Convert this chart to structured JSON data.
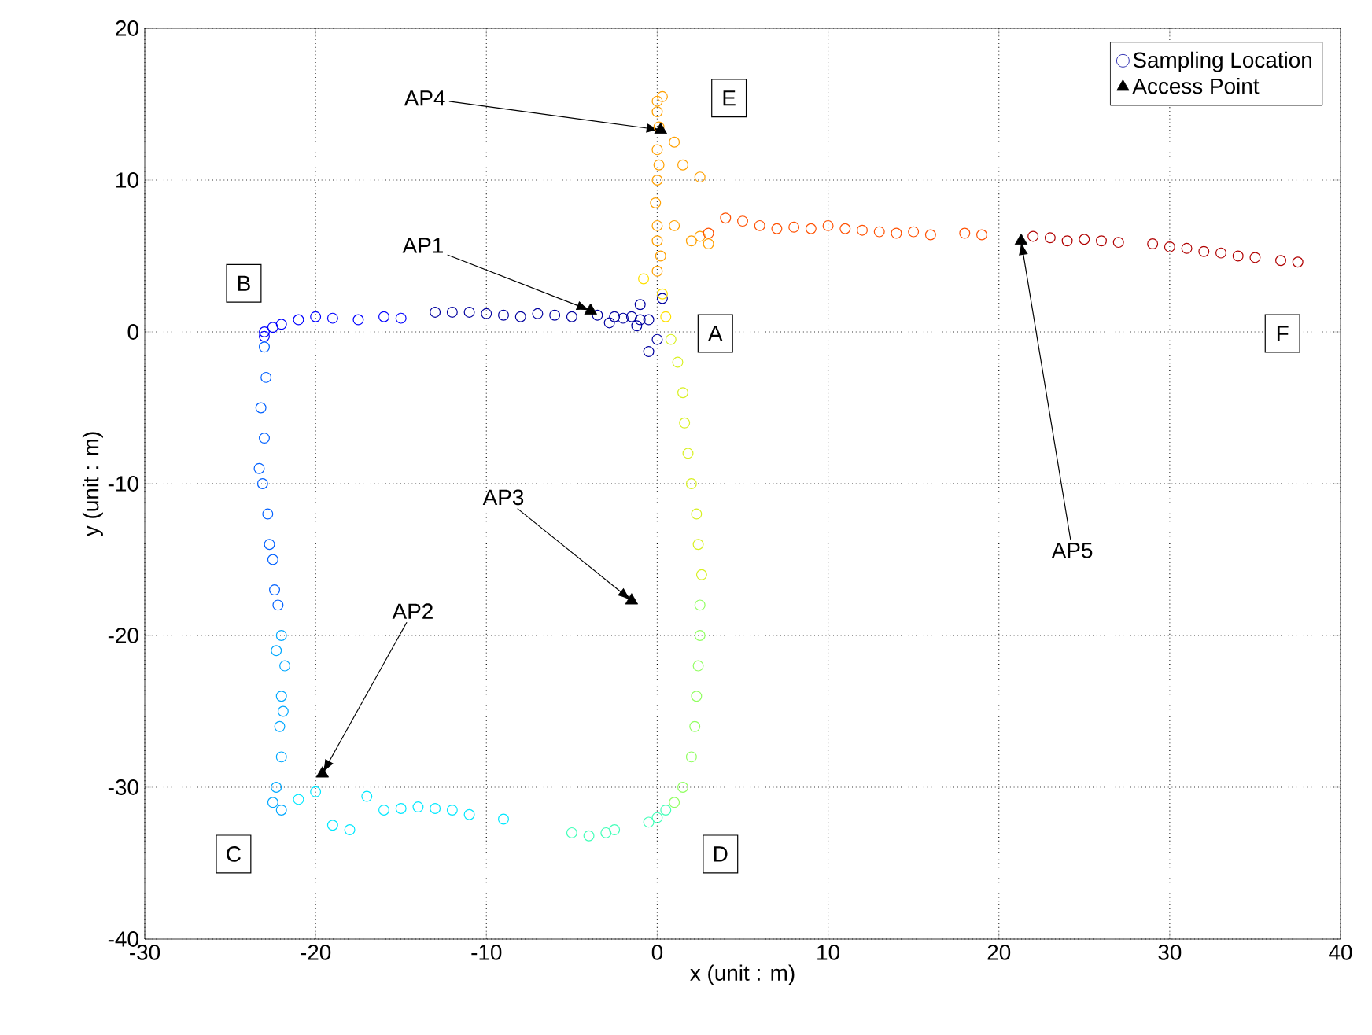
{
  "chart_data": {
    "type": "scatter",
    "xlabel": "x (unit : m)",
    "ylabel": "y (unit : m)",
    "xlim": [
      -30,
      40
    ],
    "ylim": [
      -40,
      20
    ],
    "xticks": [
      -30,
      -20,
      -10,
      0,
      10,
      20,
      30,
      40
    ],
    "yticks": [
      -40,
      -30,
      -20,
      -10,
      0,
      10,
      20
    ],
    "grid": true,
    "legend": "top right",
    "series": [
      {
        "name": "Sampling Location",
        "color": "#00009f",
        "marker": "circle",
        "x": [
          -0.5,
          -1,
          -1.5,
          -2,
          -2.5,
          -3.5,
          -5,
          -6,
          -7,
          -8,
          -9,
          -10,
          -11,
          -12,
          -13,
          0,
          -0.5,
          0.3,
          -1,
          -2.8,
          -1.2,
          -15,
          -16,
          -17.5,
          -19,
          -20,
          -21,
          -22,
          -22.5,
          -23,
          -23,
          -23,
          -22.9,
          -23.2,
          -23,
          -23.3,
          -23.1,
          -22.8,
          -22.7,
          -22.5,
          -22.4,
          -22.2,
          -22,
          -22.3,
          -21.8,
          -22,
          -21.9,
          -22.1,
          -22,
          -22.3,
          -22.5,
          -22,
          -21,
          -20,
          -19,
          -18,
          -17,
          -16,
          -15,
          -14,
          -13,
          -12,
          -11,
          -9,
          -5,
          -4,
          -3,
          -2.5,
          -0.5,
          0,
          0.5,
          1,
          1.5,
          2,
          2.2,
          2.3,
          2.4,
          2.5,
          2.5,
          2.6,
          2.4,
          2.3,
          2,
          1.8,
          1.6,
          1.5,
          1.2,
          0.8,
          0.5,
          0.3,
          -0.8,
          0,
          0.2,
          0,
          0,
          -0.1,
          0,
          0.1,
          0,
          0.1,
          0,
          0,
          0.3,
          1,
          1.5,
          2.5,
          1,
          2,
          3,
          2.5,
          3,
          4,
          5,
          6,
          7,
          8,
          9,
          10,
          11,
          12,
          13,
          14,
          15,
          16,
          18,
          19,
          22,
          23,
          24,
          25,
          26,
          27,
          29,
          30,
          31,
          32,
          33,
          34,
          35,
          36.5,
          37.5
        ],
        "values": [
          0.8,
          0.8,
          1.0,
          0.9,
          1.0,
          1.1,
          1.0,
          1.1,
          1.2,
          1.0,
          1.1,
          1.2,
          1.3,
          1.3,
          1.3,
          -0.5,
          -1.3,
          2.2,
          1.8,
          0.6,
          0.4,
          0.9,
          1.0,
          0.8,
          0.9,
          1.0,
          0.8,
          0.5,
          0.3,
          0,
          -0.3,
          -1,
          -3,
          -5,
          -7,
          -9,
          -10,
          -12,
          -14,
          -15,
          -17,
          -18,
          -20,
          -21,
          -22,
          -24,
          -25,
          -26,
          -28,
          -30,
          -31,
          -31.5,
          -30.8,
          -30.3,
          -32.5,
          -32.8,
          -30.6,
          -31.5,
          -31.4,
          -31.3,
          -31.4,
          -31.5,
          -31.8,
          -32.1,
          -33,
          -33.2,
          -33,
          -32.8,
          -32.3,
          -32,
          -31.5,
          -31,
          -30,
          -28,
          -26,
          -24,
          -22,
          -20,
          -18,
          -16,
          -14,
          -12,
          -10,
          -8,
          -6,
          -4,
          -2,
          -0.5,
          1,
          2.5,
          3.5,
          4,
          5,
          6,
          7,
          8.5,
          10,
          11,
          12,
          13.5,
          14.5,
          15.2,
          15.5,
          12.5,
          11,
          10.2,
          7,
          6,
          5.8,
          6.3,
          6.5,
          7.5,
          7.3,
          7,
          6.8,
          6.9,
          6.8,
          7,
          6.8,
          6.7,
          6.6,
          6.5,
          6.6,
          6.4,
          6.5,
          6.4,
          6.3,
          6.2,
          6.0,
          6.1,
          6.0,
          5.9,
          5.8,
          5.6,
          5.5,
          5.3,
          5.2,
          5.0,
          4.9,
          4.7,
          4.6
        ],
        "colors": [
          "#00009f",
          "#00009f",
          "#00009f",
          "#00009f",
          "#00009f",
          "#00009f",
          "#00009f",
          "#00009f",
          "#00009f",
          "#00009f",
          "#00009f",
          "#00009f",
          "#00009f",
          "#00009f",
          "#00009f",
          "#00009f",
          "#00009f",
          "#00009f",
          "#00009f",
          "#00009f",
          "#00009f",
          "#0000ff",
          "#0000ff",
          "#0000ff",
          "#0000ff",
          "#0000ff",
          "#0000ff",
          "#0000ff",
          "#0000ff",
          "#0000ff",
          "#0000ff",
          "#0060ff",
          "#0060ff",
          "#0060ff",
          "#0060ff",
          "#0060ff",
          "#0060ff",
          "#0060ff",
          "#0060ff",
          "#0060ff",
          "#0060ff",
          "#0060ff",
          "#00a8ff",
          "#00a8ff",
          "#00a8ff",
          "#00a8ff",
          "#00a8ff",
          "#00a8ff",
          "#00a8ff",
          "#00a8ff",
          "#00a8ff",
          "#00a8ff",
          "#00e8ff",
          "#00e8ff",
          "#00e8ff",
          "#00e8ff",
          "#00e8ff",
          "#00e8ff",
          "#00e8ff",
          "#00e8ff",
          "#00e8ff",
          "#00e8ff",
          "#00e8ff",
          "#00e8ff",
          "#40ffb8",
          "#40ffb8",
          "#40ffb8",
          "#40ffb8",
          "#40ffb8",
          "#40ffb8",
          "#40ffb8",
          "#90ff60",
          "#90ff60",
          "#90ff60",
          "#90ff60",
          "#90ff60",
          "#90ff60",
          "#90ff60",
          "#90ff60",
          "#d8f020",
          "#d8f020",
          "#d8f020",
          "#d8f020",
          "#d8f020",
          "#d8f020",
          "#d8f020",
          "#d8f020",
          "#d8f020",
          "#ffe000",
          "#ffe000",
          "#ffe000",
          "#ffa000",
          "#ffa000",
          "#ffa000",
          "#ffa000",
          "#ffa000",
          "#ffa000",
          "#ffa000",
          "#ffa000",
          "#ffa000",
          "#ffa000",
          "#ffa000",
          "#ffa000",
          "#ffa000",
          "#ffa000",
          "#ffa000",
          "#ffa000",
          "#ffa000",
          "#ffa000",
          "#ffa000",
          "#ff5000",
          "#ff5000",
          "#ff5000",
          "#ff5000",
          "#ff5000",
          "#ff5000",
          "#ff5000",
          "#ff5000",
          "#ff5000",
          "#ff5000",
          "#ff5000",
          "#ff5000",
          "#ff5000",
          "#ff5000",
          "#ff5000",
          "#ff5000",
          "#b00000",
          "#b00000",
          "#b00000",
          "#b00000",
          "#b00000",
          "#b00000",
          "#b00000",
          "#b00000",
          "#b00000",
          "#b00000",
          "#b00000",
          "#b00000",
          "#b00000",
          "#b00000",
          "#b00000"
        ]
      },
      {
        "name": "Access Point",
        "color": "#000000",
        "marker": "triangle",
        "x": [
          -3.9,
          -19.6,
          -1.5,
          0.2,
          21.3
        ],
        "values": [
          1.4,
          -29.1,
          -17.7,
          13.3,
          6.0
        ]
      }
    ],
    "annotations": [
      {
        "text": "AP1",
        "x": -3.9,
        "y": 1.4
      },
      {
        "text": "AP2",
        "x": -19.6,
        "y": -29.1
      },
      {
        "text": "AP3",
        "x": -1.5,
        "y": -17.7
      },
      {
        "text": "AP4",
        "x": 0.2,
        "y": 13.3
      },
      {
        "text": "AP5",
        "x": 21.3,
        "y": 6.0
      },
      {
        "text": "A",
        "x": 3.4,
        "y": -0.1
      },
      {
        "text": "B",
        "x": -24.2,
        "y": 3.2
      },
      {
        "text": "C",
        "x": -24.8,
        "y": -34.4
      },
      {
        "text": "D",
        "x": 3.7,
        "y": -34.4
      },
      {
        "text": "E",
        "x": 4.2,
        "y": 15.4
      },
      {
        "text": "F",
        "x": 36.6,
        "y": -0.1
      }
    ]
  }
}
